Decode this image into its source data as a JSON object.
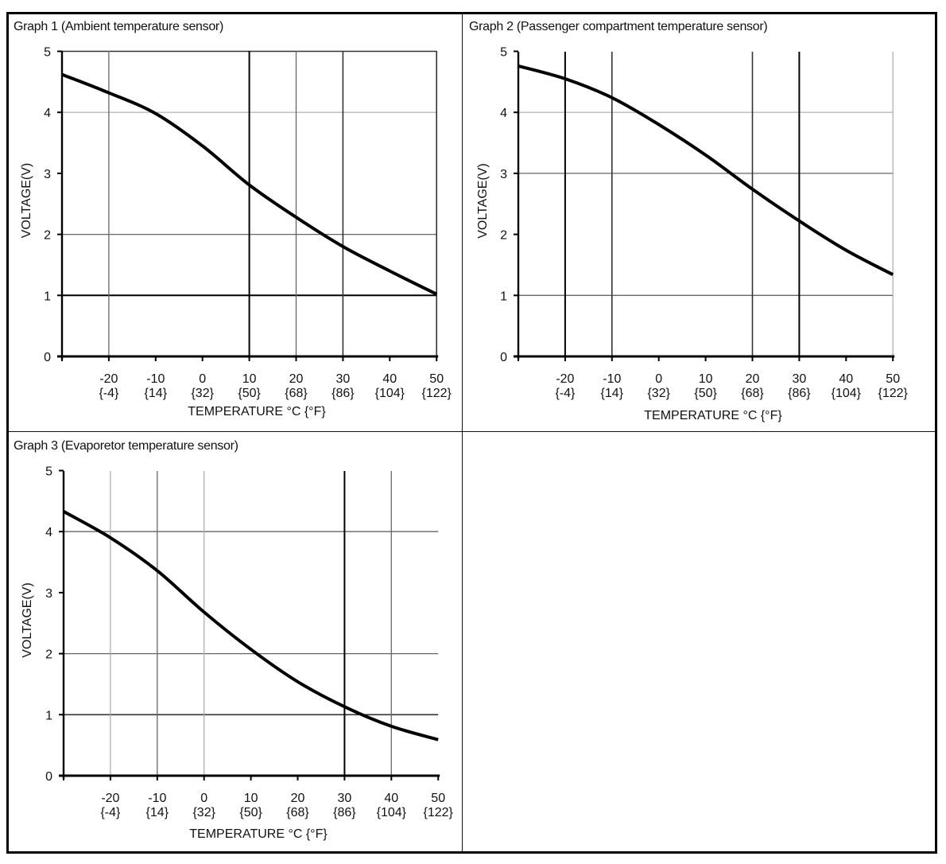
{
  "chart_data": [
    {
      "type": "line",
      "title": "Graph 1 (Ambient temperature sensor)",
      "xlabel": "TEMPERATURE °C {°F}",
      "ylabel": "VOLTAGE(V)",
      "xlim": [
        -30,
        50
      ],
      "ylim": [
        0,
        5
      ],
      "x_ticks": [
        -20,
        -10,
        0,
        10,
        20,
        30,
        40,
        50
      ],
      "x_tick_labels": [
        "-20",
        "-10",
        "0",
        "10",
        "20",
        "30",
        "40",
        "50"
      ],
      "x_tick_labels_f": [
        "{-4}",
        "{14}",
        "{32}",
        "{50}",
        "{68}",
        "{86}",
        "{104}",
        "{122}"
      ],
      "y_ticks": [
        0,
        1,
        2,
        3,
        4,
        5
      ],
      "y_tick_labels": [
        "0",
        "1",
        "2",
        "3",
        "4",
        "5"
      ],
      "grid": true,
      "vgrid": [
        {
          "x": -20,
          "tone": "gray"
        },
        {
          "x": 10,
          "tone": "black"
        },
        {
          "x": 20,
          "tone": "gray"
        },
        {
          "x": 30,
          "tone": "dark"
        },
        {
          "x": 50,
          "tone": "dark"
        }
      ],
      "hgrid": [
        {
          "y": 5,
          "tone": "dark"
        },
        {
          "y": 4,
          "tone": "light"
        },
        {
          "y": 2,
          "tone": "gray"
        },
        {
          "y": 1,
          "tone": "black"
        }
      ],
      "series": [
        {
          "name": "Ambient temperature sensor",
          "x": [
            -30,
            -20,
            -10,
            0,
            10,
            20,
            30,
            40,
            50
          ],
          "y": [
            4.62,
            4.32,
            3.98,
            3.45,
            2.81,
            2.28,
            1.8,
            1.4,
            1.02
          ]
        }
      ]
    },
    {
      "type": "line",
      "title": "Graph 2 (Passenger compartment temperature sensor)",
      "xlabel": "TEMPERATURE °C {°F}",
      "ylabel": "VOLTAGE(V)",
      "xlim": [
        -30,
        50
      ],
      "ylim": [
        0,
        5
      ],
      "x_ticks": [
        -20,
        -10,
        0,
        10,
        20,
        30,
        40,
        50
      ],
      "x_tick_labels": [
        "-20",
        "-10",
        "0",
        "10",
        "20",
        "30",
        "40",
        "50"
      ],
      "x_tick_labels_f": [
        "{-4}",
        "{14}",
        "{32}",
        "{50}",
        "{68}",
        "{86}",
        "{104}",
        "{122}"
      ],
      "y_ticks": [
        0,
        1,
        2,
        3,
        4,
        5
      ],
      "y_tick_labels": [
        "0",
        "1",
        "2",
        "3",
        "4",
        "5"
      ],
      "grid": true,
      "vgrid": [
        {
          "x": -20,
          "tone": "black"
        },
        {
          "x": -10,
          "tone": "dark"
        },
        {
          "x": 20,
          "tone": "dark"
        },
        {
          "x": 30,
          "tone": "black"
        },
        {
          "x": 50,
          "tone": "light"
        }
      ],
      "hgrid": [
        {
          "y": 4,
          "tone": "light"
        },
        {
          "y": 3,
          "tone": "gray"
        },
        {
          "y": 1,
          "tone": "gray"
        }
      ],
      "series": [
        {
          "name": "Passenger compartment temperature sensor",
          "x": [
            -30,
            -20,
            -10,
            0,
            10,
            20,
            30,
            40,
            50
          ],
          "y": [
            4.76,
            4.55,
            4.24,
            3.8,
            3.3,
            2.74,
            2.22,
            1.74,
            1.34
          ]
        }
      ]
    },
    {
      "type": "line",
      "title": "Graph 3 (Evaporetor temperature sensor)",
      "xlabel": "TEMPERATURE °C {°F}",
      "ylabel": "VOLTAGE(V)",
      "xlim": [
        -30,
        50
      ],
      "ylim": [
        0,
        5
      ],
      "x_ticks": [
        -20,
        -10,
        0,
        10,
        20,
        30,
        40,
        50
      ],
      "x_tick_labels": [
        "-20",
        "-10",
        "0",
        "10",
        "20",
        "30",
        "40",
        "50"
      ],
      "x_tick_labels_f": [
        "{-4}",
        "{14}",
        "{32}",
        "{50}",
        "{68}",
        "{86}",
        "{104}",
        "{122}"
      ],
      "y_ticks": [
        0,
        1,
        2,
        3,
        4,
        5
      ],
      "y_tick_labels": [
        "0",
        "1",
        "2",
        "3",
        "4",
        "5"
      ],
      "grid": true,
      "vgrid": [
        {
          "x": -20,
          "tone": "light"
        },
        {
          "x": -10,
          "tone": "gray"
        },
        {
          "x": 0,
          "tone": "light"
        },
        {
          "x": 30,
          "tone": "black"
        },
        {
          "x": 40,
          "tone": "gray"
        }
      ],
      "hgrid": [
        {
          "y": 4,
          "tone": "gray"
        },
        {
          "y": 2,
          "tone": "gray"
        },
        {
          "y": 1,
          "tone": "dark"
        }
      ],
      "series": [
        {
          "name": "Evaporetor temperature sensor",
          "x": [
            -30,
            -20,
            -10,
            0,
            10,
            20,
            30,
            40,
            50
          ],
          "y": [
            4.33,
            3.9,
            3.36,
            2.68,
            2.07,
            1.54,
            1.13,
            0.81,
            0.59
          ]
        }
      ]
    }
  ],
  "colors": {
    "black": "#000000",
    "dark": "#333333",
    "gray": "#666666",
    "light": "#aaaaaa",
    "curve": "#000000"
  }
}
